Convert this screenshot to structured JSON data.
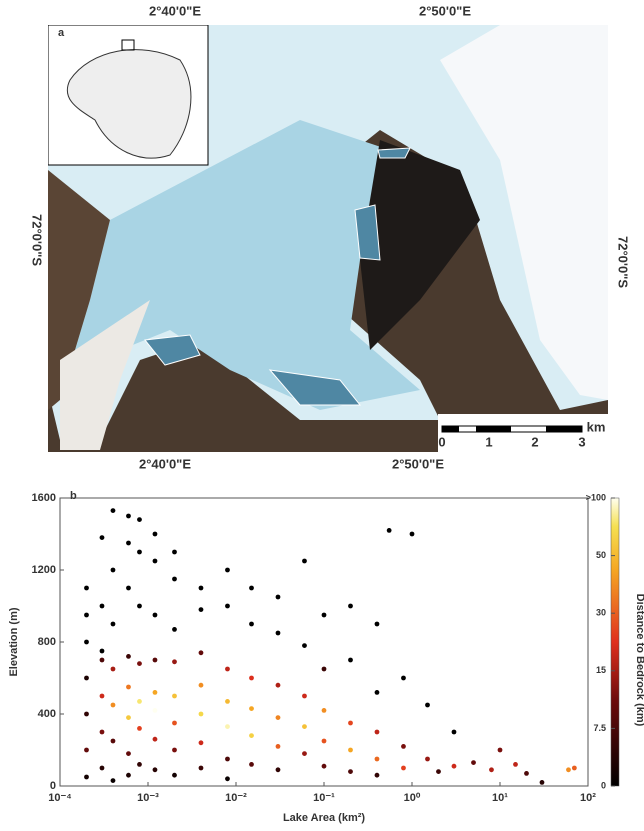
{
  "map": {
    "panel_label": "a",
    "top_labels": [
      "2°40'0\"E",
      "2°50'0\"E"
    ],
    "bottom_labels": [
      "2°40'0\"E",
      "2°50'0\"E"
    ],
    "left_label": "72°0'0\"S",
    "right_label": "72°0'0\"S",
    "scale_bar": {
      "unit": "km",
      "ticks": [
        "0",
        "1",
        "2",
        "3"
      ]
    }
  },
  "chart_data": {
    "type": "scatter",
    "panel_label": "b",
    "xlabel": "Lake Area (km²)",
    "ylabel": "Elevation (m)",
    "colorbar_label": "Distance to Bedrock (km)",
    "log_x": true,
    "xlim": [
      0.0001,
      100
    ],
    "xticks": [
      {
        "value": 0.0001,
        "label": "10⁻⁴"
      },
      {
        "value": 0.001,
        "label": "10⁻³"
      },
      {
        "value": 0.01,
        "label": "10⁻²"
      },
      {
        "value": 0.1,
        "label": "10⁻¹"
      },
      {
        "value": 1,
        "label": "10⁰"
      },
      {
        "value": 10,
        "label": "10¹"
      },
      {
        "value": 100,
        "label": "10²"
      }
    ],
    "ylim": [
      0,
      1600
    ],
    "yticks": [
      0,
      400,
      800,
      1200,
      1600
    ],
    "colorbar_ticks": [
      0,
      7.5,
      15,
      30,
      50,
      {
        "value": 100,
        "label": ">100"
      }
    ],
    "x": [
      0.0002,
      0.0002,
      0.0002,
      0.0002,
      0.0002,
      0.0002,
      0.0002,
      0.0003,
      0.0003,
      0.0003,
      0.0003,
      0.0003,
      0.0003,
      0.0003,
      0.0004,
      0.0004,
      0.0004,
      0.0004,
      0.0004,
      0.0004,
      0.0004,
      0.0006,
      0.0006,
      0.0006,
      0.0006,
      0.0006,
      0.0006,
      0.0006,
      0.0006,
      0.0008,
      0.0008,
      0.0008,
      0.0008,
      0.0008,
      0.0008,
      0.0008,
      0.0012,
      0.0012,
      0.0012,
      0.0012,
      0.0012,
      0.0012,
      0.0012,
      0.0012,
      0.002,
      0.002,
      0.002,
      0.002,
      0.002,
      0.002,
      0.002,
      0.002,
      0.004,
      0.004,
      0.004,
      0.004,
      0.004,
      0.004,
      0.004,
      0.008,
      0.008,
      0.008,
      0.008,
      0.008,
      0.008,
      0.008,
      0.015,
      0.015,
      0.015,
      0.015,
      0.015,
      0.015,
      0.03,
      0.03,
      0.03,
      0.03,
      0.03,
      0.03,
      0.06,
      0.06,
      0.06,
      0.06,
      0.06,
      0.1,
      0.1,
      0.1,
      0.1,
      0.1,
      0.2,
      0.2,
      0.2,
      0.2,
      0.2,
      0.4,
      0.4,
      0.4,
      0.4,
      0.4,
      0.55,
      0.8,
      0.8,
      0.8,
      1,
      1.5,
      1.5,
      2,
      3,
      3,
      5,
      8,
      10,
      15,
      20,
      60,
      70,
      30
    ],
    "values": [
      1100,
      800,
      600,
      400,
      200,
      50,
      950,
      1380,
      1000,
      700,
      500,
      300,
      100,
      750,
      1530,
      1200,
      900,
      650,
      450,
      250,
      30,
      1500,
      1350,
      1100,
      720,
      550,
      380,
      180,
      60,
      1480,
      1300,
      1000,
      680,
      470,
      320,
      120,
      1400,
      1250,
      950,
      700,
      520,
      420,
      260,
      90,
      1300,
      1150,
      870,
      690,
      500,
      350,
      200,
      60,
      1100,
      980,
      740,
      560,
      400,
      240,
      100,
      1200,
      1000,
      650,
      470,
      330,
      150,
      40,
      1100,
      900,
      600,
      430,
      280,
      120,
      1050,
      850,
      560,
      380,
      220,
      90,
      1250,
      780,
      500,
      330,
      180,
      950,
      650,
      420,
      250,
      110,
      1000,
      700,
      350,
      200,
      80,
      900,
      520,
      300,
      150,
      60,
      1420,
      600,
      220,
      100,
      1400,
      450,
      150,
      80,
      300,
      110,
      130,
      90,
      200,
      120,
      70,
      90,
      100,
      20
    ],
    "distance": [
      0,
      0,
      3,
      5,
      10,
      2,
      0,
      0,
      0,
      8,
      20,
      12,
      4,
      0,
      0,
      0,
      0,
      15,
      40,
      9,
      1,
      0,
      0,
      0,
      6,
      35,
      60,
      10,
      3,
      0,
      0,
      0,
      12,
      80,
      25,
      5,
      0,
      0,
      0,
      9,
      45,
      100,
      18,
      4,
      0,
      0,
      0,
      14,
      55,
      28,
      12,
      2,
      0,
      0,
      10,
      40,
      70,
      20,
      6,
      0,
      0,
      18,
      50,
      90,
      8,
      1,
      0,
      0,
      22,
      45,
      65,
      9,
      0,
      0,
      16,
      38,
      30,
      5,
      0,
      0,
      20,
      55,
      14,
      0,
      6,
      40,
      28,
      10,
      0,
      0,
      26,
      45,
      8,
      0,
      0,
      18,
      32,
      5,
      0,
      0,
      12,
      25,
      0,
      0,
      14,
      6,
      0,
      20,
      10,
      16,
      12,
      18,
      8,
      40,
      30,
      4
    ]
  }
}
